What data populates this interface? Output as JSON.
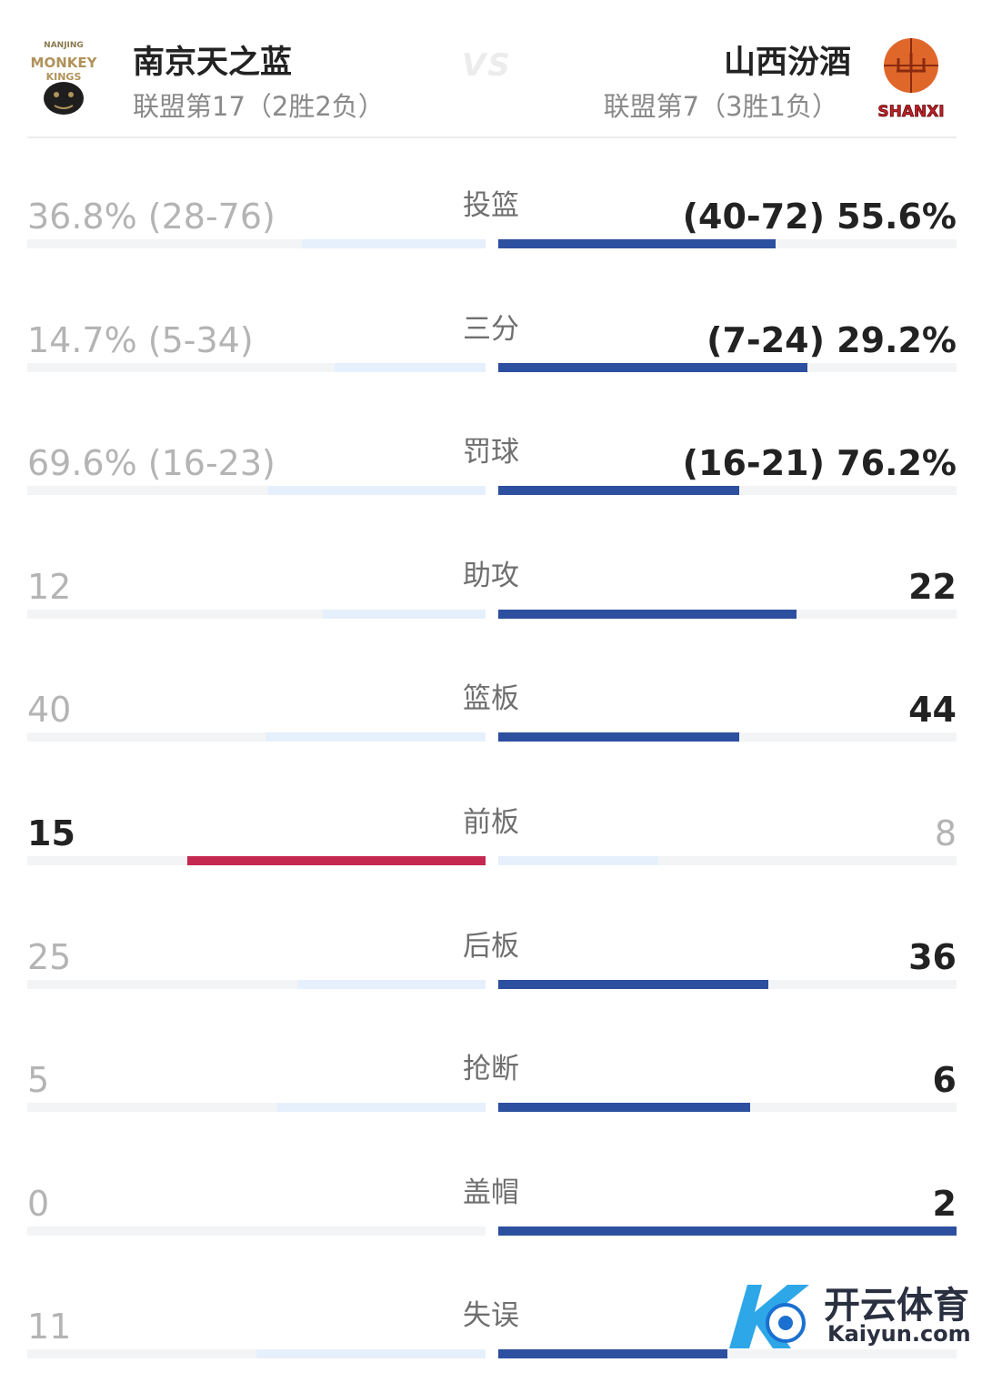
{
  "home": {
    "name": "南京天之蓝",
    "rank": "联盟第17（2胜2负）",
    "logo_label": "NANJING MONKEYKINGS"
  },
  "away": {
    "name": "山西汾酒",
    "rank": "联盟第7（3胜1负）",
    "logo_label": "SHANXI"
  },
  "vs_label": "VS",
  "colors": {
    "leader_blue": "#2d4f9f",
    "leader_red": "#c42750",
    "loser_bar": "#e6f0fc"
  },
  "stats": [
    {
      "label": "投篮",
      "home": "36.8% (28-76)",
      "away": "(40-72) 55.6%",
      "home_share": 0.4,
      "away_share": 0.605,
      "leader": "away"
    },
    {
      "label": "三分",
      "home": "14.7% (5-34)",
      "away": "(7-24) 29.2%",
      "home_share": 0.33,
      "away_share": 0.675,
      "leader": "away"
    },
    {
      "label": "罚球",
      "home": "69.6% (16-23)",
      "away": "(16-21) 76.2%",
      "home_share": 0.475,
      "away_share": 0.525,
      "leader": "away"
    },
    {
      "label": "助攻",
      "home": "12",
      "away": "22",
      "home_share": 0.355,
      "away_share": 0.65,
      "leader": "away"
    },
    {
      "label": "篮板",
      "home": "40",
      "away": "44",
      "home_share": 0.48,
      "away_share": 0.525,
      "leader": "away"
    },
    {
      "label": "前板",
      "home": "15",
      "away": "8",
      "home_share": 0.65,
      "away_share": 0.35,
      "leader": "home"
    },
    {
      "label": "后板",
      "home": "25",
      "away": "36",
      "home_share": 0.41,
      "away_share": 0.59,
      "leader": "away"
    },
    {
      "label": "抢断",
      "home": "5",
      "away": "6",
      "home_share": 0.455,
      "away_share": 0.55,
      "leader": "away"
    },
    {
      "label": "盖帽",
      "home": "0",
      "away": "2",
      "home_share": 0.0,
      "away_share": 1.0,
      "leader": "away"
    },
    {
      "label": "失误",
      "home": "11",
      "away": "",
      "home_share": 0.5,
      "away_share": 0.5,
      "leader": "away"
    }
  ],
  "watermark": {
    "brand": "开云体育",
    "sub": "Kaiyun.com"
  }
}
